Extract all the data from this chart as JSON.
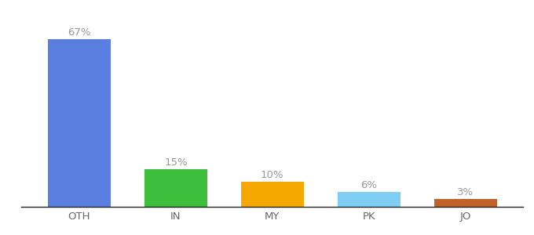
{
  "categories": [
    "OTH",
    "IN",
    "MY",
    "PK",
    "JO"
  ],
  "values": [
    67,
    15,
    10,
    6,
    3
  ],
  "bar_colors": [
    "#5b7fe0",
    "#3dbe3d",
    "#f5a800",
    "#7ecef4",
    "#c0622a"
  ],
  "ylim": [
    0,
    78
  ],
  "background_color": "#ffffff",
  "bar_width": 0.65,
  "label_fontsize": 9.5,
  "tick_fontsize": 9.5,
  "label_color": "#999999",
  "tick_color": "#666666"
}
